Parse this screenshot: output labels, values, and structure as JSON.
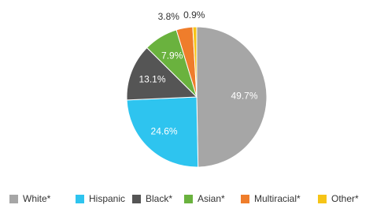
{
  "chart_data": {
    "type": "pie",
    "categories": [
      "White*",
      "Hispanic",
      "Black*",
      "Asian*",
      "Multiracial*",
      "Other*"
    ],
    "values": [
      49.7,
      24.6,
      13.1,
      7.9,
      3.8,
      0.9
    ],
    "value_labels": [
      "49.7%",
      "24.6%",
      "13.1%",
      "7.9%",
      "3.8%",
      "0.9%"
    ],
    "colors": [
      "#a6a6a6",
      "#2ec4ef",
      "#555555",
      "#6ab23e",
      "#ef7d2b",
      "#f6c417"
    ]
  }
}
